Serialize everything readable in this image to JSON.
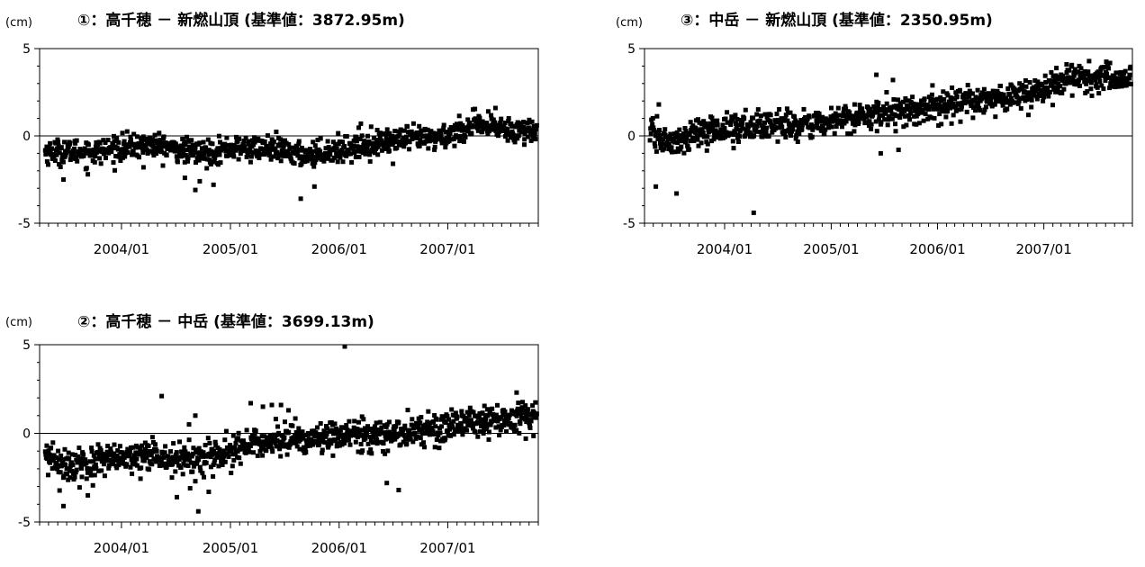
{
  "chart_data": [
    {
      "type": "scatter",
      "title": "①：高千穂 － 新燃山頂 (基準値：3872.95m)",
      "ylabel": "(cm)",
      "ylim": [
        -5,
        5
      ],
      "y_ticks": [
        5,
        0,
        -5
      ],
      "xlim": [
        "2003-04-01",
        "2007-11-01"
      ],
      "x_ticks": [
        "2004/01",
        "2005/01",
        "2006/01",
        "2007/01"
      ],
      "zero_line": true,
      "marker": "square",
      "color": "#000000",
      "trend": [
        [
          "2003-04",
          -0.9
        ],
        [
          "2003-10",
          -0.9
        ],
        [
          "2004-04",
          -0.5
        ],
        [
          "2004-10",
          -1.0
        ],
        [
          "2005-01",
          -0.7
        ],
        [
          "2005-05",
          -0.7
        ],
        [
          "2005-09",
          -1.1
        ],
        [
          "2006-01",
          -0.8
        ],
        [
          "2006-06",
          -0.3
        ],
        [
          "2006-12",
          -0.1
        ],
        [
          "2007-04",
          0.6
        ],
        [
          "2007-10",
          0.3
        ]
      ],
      "spread": 0.35,
      "outliers": [
        [
          "2003-06-20",
          -2.5
        ],
        [
          "2003-09-10",
          -2.2
        ],
        [
          "2004-03-15",
          -1.8
        ],
        [
          "2004-08-01",
          -2.4
        ],
        [
          "2004-09-05",
          -3.1
        ],
        [
          "2004-09-20",
          -2.6
        ],
        [
          "2004-11-05",
          -2.8
        ],
        [
          "2005-08-25",
          -3.6
        ],
        [
          "2005-10-10",
          -2.9
        ],
        [
          "2006-07-01",
          -1.6
        ],
        [
          "2006-03-15",
          0.7
        ],
        [
          "2007-06-10",
          1.6
        ],
        [
          "2007-09-15",
          -0.5
        ]
      ]
    },
    {
      "type": "scatter",
      "title": "③：中岳 － 新燃山頂 (基準値：2350.95m)",
      "ylabel": "(cm)",
      "ylim": [
        -5,
        5
      ],
      "y_ticks": [
        5,
        0,
        -5
      ],
      "xlim": [
        "2003-04-01",
        "2007-11-01"
      ],
      "x_ticks": [
        "2004/01",
        "2005/01",
        "2006/01",
        "2007/01"
      ],
      "zero_line": true,
      "marker": "square",
      "color": "#000000",
      "trend": [
        [
          "2003-04",
          0.4
        ],
        [
          "2003-07",
          -0.5
        ],
        [
          "2003-10",
          0.2
        ],
        [
          "2004-04",
          0.6
        ],
        [
          "2004-10",
          0.6
        ],
        [
          "2005-01",
          0.8
        ],
        [
          "2005-06",
          1.3
        ],
        [
          "2005-10",
          1.5
        ],
        [
          "2006-01",
          1.6
        ],
        [
          "2006-06",
          2.1
        ],
        [
          "2006-12",
          2.4
        ],
        [
          "2007-04",
          3.3
        ],
        [
          "2007-10",
          3.3
        ]
      ],
      "spread": 0.4,
      "outliers": [
        [
          "2003-05-10",
          -2.9
        ],
        [
          "2003-07-20",
          -3.3
        ],
        [
          "2003-05-20",
          1.8
        ],
        [
          "2004-04-10",
          -4.4
        ],
        [
          "2004-02-01",
          -0.7
        ],
        [
          "2005-06-05",
          3.5
        ],
        [
          "2005-08-01",
          3.2
        ],
        [
          "2005-06-20",
          -1.0
        ],
        [
          "2005-08-20",
          -0.8
        ],
        [
          "2005-07-10",
          2.5
        ],
        [
          "2007-06-15",
          2.3
        ],
        [
          "2007-03-20",
          4.1
        ]
      ]
    },
    {
      "type": "scatter",
      "title": "②：高千穂 － 中岳 (基準値：3699.13m)",
      "ylabel": "(cm)",
      "ylim": [
        -5,
        5
      ],
      "y_ticks": [
        5,
        0,
        -5
      ],
      "xlim": [
        "2003-04-01",
        "2007-11-01"
      ],
      "x_ticks": [
        "2004/01",
        "2005/01",
        "2006/01",
        "2007/01"
      ],
      "zero_line": true,
      "marker": "square",
      "color": "#000000",
      "trend": [
        [
          "2003-04",
          -1.3
        ],
        [
          "2003-08",
          -1.9
        ],
        [
          "2003-12",
          -1.5
        ],
        [
          "2004-04",
          -1.3
        ],
        [
          "2004-09",
          -1.6
        ],
        [
          "2004-12",
          -1.3
        ],
        [
          "2005-03",
          -0.7
        ],
        [
          "2005-06",
          -0.3
        ],
        [
          "2005-09",
          -0.4
        ],
        [
          "2006-01",
          -0.1
        ],
        [
          "2006-06",
          -0.1
        ],
        [
          "2006-12",
          0.4
        ],
        [
          "2007-06",
          0.7
        ],
        [
          "2007-10",
          0.8
        ]
      ],
      "spread": 0.45,
      "outliers": [
        [
          "2003-06-20",
          -4.1
        ],
        [
          "2003-09-10",
          -3.5
        ],
        [
          "2004-05-15",
          2.1
        ],
        [
          "2004-08-15",
          0.5
        ],
        [
          "2004-09-05",
          1.0
        ],
        [
          "2004-09-15",
          -4.4
        ],
        [
          "2004-07-05",
          -3.6
        ],
        [
          "2004-10-20",
          -3.3
        ],
        [
          "2005-03-10",
          1.7
        ],
        [
          "2005-04-20",
          1.5
        ],
        [
          "2005-05-20",
          1.6
        ],
        [
          "2005-06-20",
          1.6
        ],
        [
          "2005-07-15",
          1.3
        ],
        [
          "2006-01-20",
          4.9
        ],
        [
          "2006-07-20",
          -3.2
        ],
        [
          "2006-06-10",
          -2.8
        ],
        [
          "2007-08-20",
          2.3
        ],
        [
          "2007-09-20",
          -0.3
        ]
      ]
    }
  ]
}
